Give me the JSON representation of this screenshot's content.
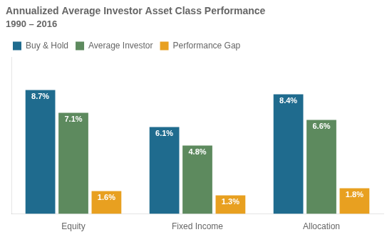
{
  "chart_data": {
    "type": "bar",
    "title": "Annualized Average Investor Asset Class Performance",
    "subtitle": "1990 – 2016",
    "categories": [
      "Equity",
      "Fixed Income",
      "Allocation"
    ],
    "series": [
      {
        "name": "Buy & Hold",
        "color": "#1f6b8e",
        "values": [
          8.7,
          6.1,
          8.4
        ],
        "value_labels": [
          "8.7%",
          "6.1%",
          "8.4%"
        ]
      },
      {
        "name": "Average Investor",
        "color": "#5d8a5e",
        "values": [
          7.1,
          4.8,
          6.6
        ],
        "value_labels": [
          "7.1%",
          "4.8%",
          "6.6%"
        ]
      },
      {
        "name": "Performance Gap",
        "color": "#e8a020",
        "values": [
          1.6,
          1.3,
          1.8
        ],
        "value_labels": [
          "1.6%",
          "1.3%",
          "1.8%"
        ]
      }
    ],
    "ylim": [
      0,
      11.0
    ],
    "grid": false,
    "legend": "upper left",
    "data_labels": true,
    "tick_labels": "x"
  }
}
